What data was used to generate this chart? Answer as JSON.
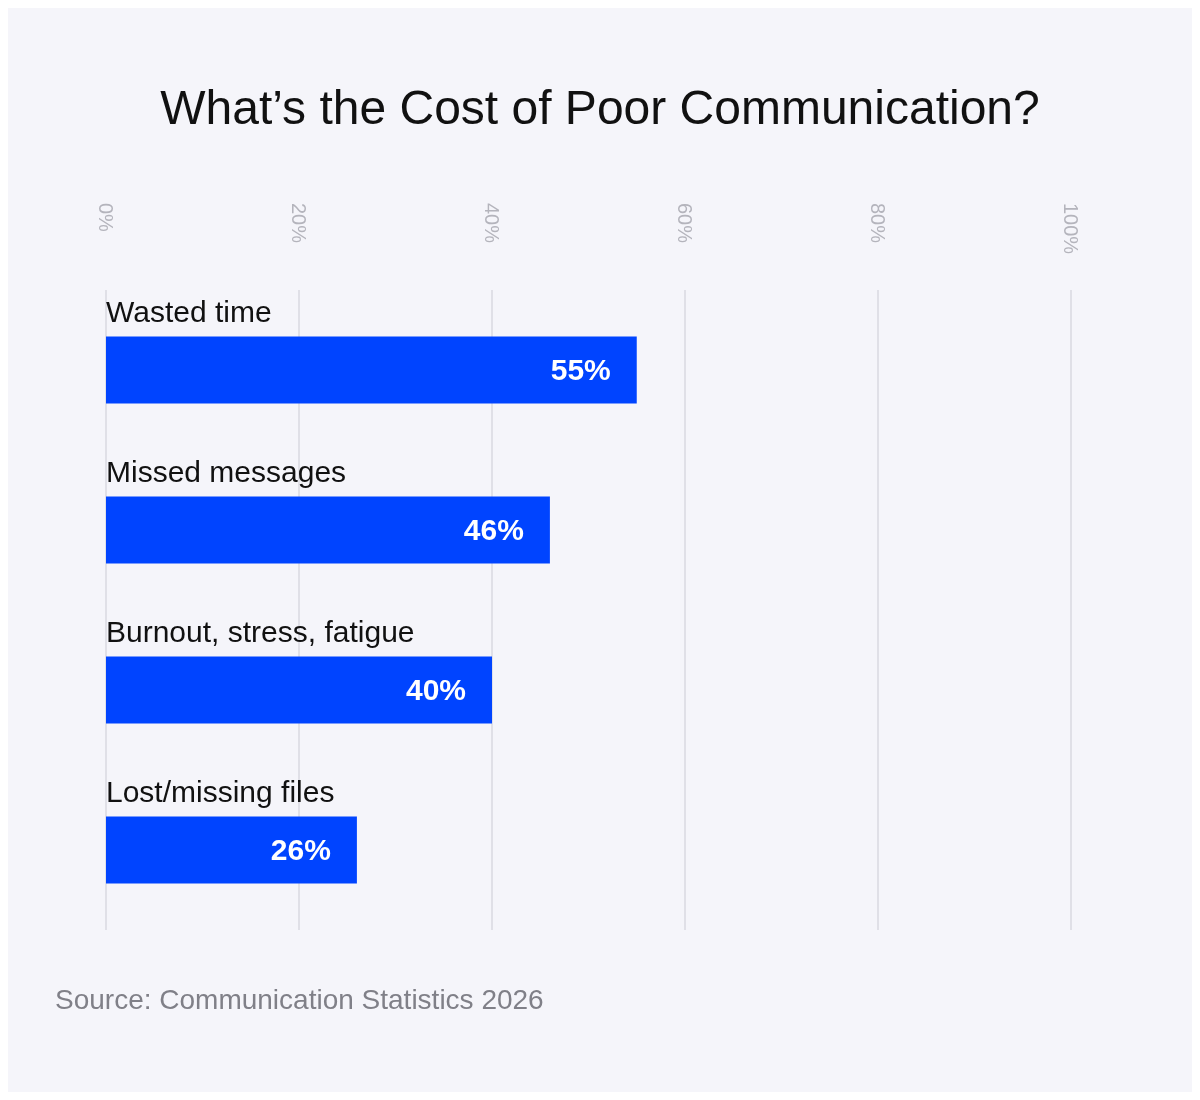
{
  "chart_data": {
    "type": "bar",
    "orientation": "horizontal",
    "title": "What’s the Cost of Poor Communication?",
    "categories": [
      "Wasted time",
      "Missed messages",
      "Burnout, stress, fatigue",
      "Lost/missing files"
    ],
    "values": [
      55,
      46,
      40,
      26
    ],
    "value_labels": [
      "55%",
      "46%",
      "40%",
      "26%"
    ],
    "color": "#0044ff",
    "xlim": [
      0,
      100
    ],
    "xticks": [
      {
        "value": 0,
        "label": "0%"
      },
      {
        "value": 20,
        "label": "20%"
      },
      {
        "value": 40,
        "label": "40%"
      },
      {
        "value": 60,
        "label": "60%"
      },
      {
        "value": 80,
        "label": "80%"
      },
      {
        "value": 100,
        "label": "100%"
      }
    ],
    "grid": "x",
    "annotations": [
      "Source: Communication Statistics 2026"
    ]
  }
}
